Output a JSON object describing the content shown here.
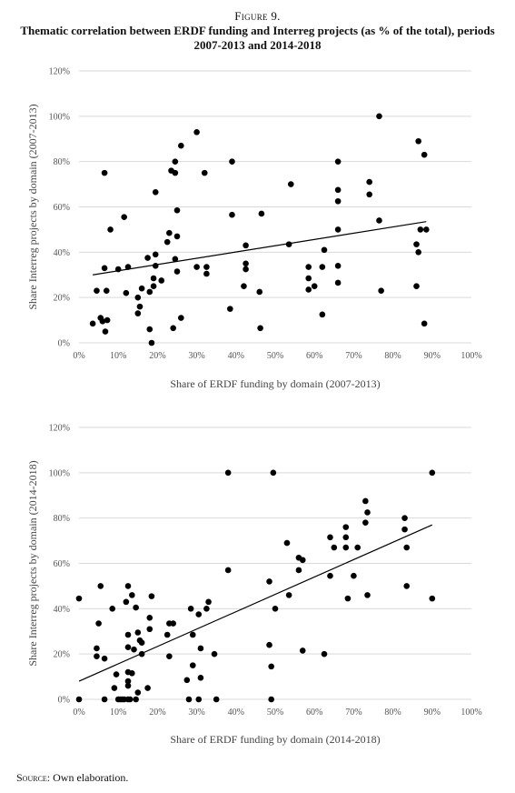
{
  "figure": {
    "label": "Figure 9.",
    "title": "Thematic correlation between ERDF funding and Interreg projects (as % of the total), periods 2007-2013 and 2014-2018"
  },
  "source": {
    "label": "Source:",
    "text": "Own elaboration."
  },
  "colors": {
    "points": "#000000",
    "trendline": "#000000",
    "gridlines": "#d9d9d9",
    "text": "#555555"
  },
  "chart_data": [
    {
      "type": "scatter",
      "title": "",
      "xlabel": "Share of ERDF funding by domain (2007-2013)",
      "ylabel": "Share Interreg projects by domain (2007-2013)",
      "xlim": [
        0,
        100
      ],
      "ylim": [
        0,
        120
      ],
      "x_ticks": [
        "0%",
        "10%",
        "20%",
        "30%",
        "40%",
        "50%",
        "60%",
        "70%",
        "80%",
        "90%",
        "100%"
      ],
      "y_ticks": [
        "0%",
        "20%",
        "40%",
        "60%",
        "80%",
        "100%",
        "120%"
      ],
      "grid": "horizontal",
      "legend": "none",
      "trendline": {
        "type": "linear",
        "x": [
          3.5,
          88.5
        ],
        "y": [
          30,
          53.5
        ]
      },
      "points": [
        [
          3.5,
          8.5
        ],
        [
          4.5,
          23
        ],
        [
          5.5,
          11
        ],
        [
          6,
          9.5
        ],
        [
          6.5,
          75
        ],
        [
          6.5,
          33
        ],
        [
          6.7,
          5
        ],
        [
          7,
          23
        ],
        [
          7.2,
          10
        ],
        [
          8,
          50
        ],
        [
          10,
          32.5
        ],
        [
          11.5,
          55.5
        ],
        [
          12,
          22
        ],
        [
          12.5,
          33.5
        ],
        [
          15,
          13
        ],
        [
          15,
          20
        ],
        [
          15.5,
          16
        ],
        [
          16,
          24
        ],
        [
          17.5,
          37.5
        ],
        [
          18,
          6
        ],
        [
          18,
          22.5
        ],
        [
          18.5,
          0
        ],
        [
          19,
          25
        ],
        [
          19,
          28.5
        ],
        [
          19.5,
          34
        ],
        [
          19.5,
          39
        ],
        [
          19.5,
          66.5
        ],
        [
          21,
          27.5
        ],
        [
          22.5,
          44.5
        ],
        [
          23,
          48.5
        ],
        [
          23.5,
          76
        ],
        [
          24,
          6.5
        ],
        [
          24.5,
          75
        ],
        [
          24.5,
          80
        ],
        [
          24.5,
          37
        ],
        [
          25,
          58.5
        ],
        [
          25,
          47
        ],
        [
          25,
          31.5
        ],
        [
          26,
          11
        ],
        [
          26,
          87
        ],
        [
          30,
          93
        ],
        [
          30,
          33.5
        ],
        [
          32,
          75
        ],
        [
          32.5,
          30.5
        ],
        [
          32.5,
          33.5
        ],
        [
          38.5,
          15
        ],
        [
          39,
          80
        ],
        [
          39,
          56.5
        ],
        [
          42,
          25
        ],
        [
          42.5,
          43
        ],
        [
          42.5,
          35
        ],
        [
          42.5,
          32.5
        ],
        [
          46,
          22.5
        ],
        [
          46.2,
          6.5
        ],
        [
          46.5,
          57
        ],
        [
          53.5,
          43.5
        ],
        [
          54,
          70
        ],
        [
          58.5,
          28.5
        ],
        [
          58.5,
          33.5
        ],
        [
          58.5,
          23.5
        ],
        [
          60,
          25
        ],
        [
          62,
          12.5
        ],
        [
          62,
          33.5
        ],
        [
          62.5,
          41
        ],
        [
          66,
          80
        ],
        [
          66,
          67.5
        ],
        [
          66,
          62.5
        ],
        [
          66,
          50
        ],
        [
          66,
          34
        ],
        [
          66,
          26.5
        ],
        [
          74,
          71
        ],
        [
          74,
          65.5
        ],
        [
          76.5,
          100
        ],
        [
          76.5,
          54
        ],
        [
          77,
          23
        ],
        [
          86,
          43.5
        ],
        [
          86,
          25
        ],
        [
          86.5,
          89
        ],
        [
          86.5,
          40
        ],
        [
          87,
          50
        ],
        [
          88,
          83
        ],
        [
          88,
          8.5
        ],
        [
          88.5,
          50
        ]
      ]
    },
    {
      "type": "scatter",
      "title": "",
      "xlabel": "Share of ERDF funding by domain (2014-2018)",
      "ylabel": "Share Interreg projects by domain (2014-2018)",
      "xlim": [
        0,
        100
      ],
      "ylim": [
        0,
        120
      ],
      "x_ticks": [
        "0%",
        "10%",
        "20%",
        "30%",
        "40%",
        "50%",
        "60%",
        "70%",
        "80%",
        "90%",
        "100%"
      ],
      "y_ticks": [
        "0%",
        "20%",
        "40%",
        "60%",
        "80%",
        "100%",
        "120%"
      ],
      "grid": "horizontal",
      "legend": "none",
      "trendline": {
        "type": "linear",
        "x": [
          0,
          90
        ],
        "y": [
          8,
          77
        ]
      },
      "points": [
        [
          0,
          0
        ],
        [
          0,
          44.5
        ],
        [
          4.5,
          19
        ],
        [
          4.5,
          22.5
        ],
        [
          5,
          33.5
        ],
        [
          5.5,
          50
        ],
        [
          6.5,
          0
        ],
        [
          6.5,
          18
        ],
        [
          8.5,
          40
        ],
        [
          9,
          5
        ],
        [
          9.5,
          11
        ],
        [
          10,
          0
        ],
        [
          10.5,
          0
        ],
        [
          11,
          0
        ],
        [
          11.5,
          0
        ],
        [
          12,
          43
        ],
        [
          12.5,
          50
        ],
        [
          12.5,
          23
        ],
        [
          12.5,
          28.5
        ],
        [
          12.5,
          12
        ],
        [
          12.5,
          0
        ],
        [
          12.5,
          8
        ],
        [
          12.5,
          6
        ],
        [
          13,
          0
        ],
        [
          13.5,
          46
        ],
        [
          13.5,
          11.5
        ],
        [
          14,
          22
        ],
        [
          14.5,
          0
        ],
        [
          14.5,
          40.5
        ],
        [
          15,
          3
        ],
        [
          15,
          29.5
        ],
        [
          15.5,
          26
        ],
        [
          16,
          25
        ],
        [
          16,
          20
        ],
        [
          17.5,
          5
        ],
        [
          18,
          36
        ],
        [
          18,
          31
        ],
        [
          18.5,
          45.5
        ],
        [
          22.5,
          28.5
        ],
        [
          23,
          19
        ],
        [
          23,
          33.5
        ],
        [
          24,
          33.5
        ],
        [
          27.5,
          8.5
        ],
        [
          28,
          0
        ],
        [
          28.5,
          40
        ],
        [
          29,
          28.5
        ],
        [
          29,
          15
        ],
        [
          30.5,
          37.5
        ],
        [
          30.5,
          0
        ],
        [
          31,
          22.5
        ],
        [
          31,
          9.5
        ],
        [
          32.5,
          40
        ],
        [
          33,
          43
        ],
        [
          34.5,
          20
        ],
        [
          35,
          0
        ],
        [
          38,
          100
        ],
        [
          38,
          57
        ],
        [
          48.5,
          52
        ],
        [
          48.5,
          24
        ],
        [
          49,
          14.5
        ],
        [
          49,
          0
        ],
        [
          49.5,
          100
        ],
        [
          50,
          40
        ],
        [
          53,
          69
        ],
        [
          53.5,
          46
        ],
        [
          56,
          62.5
        ],
        [
          56,
          57
        ],
        [
          57,
          21.5
        ],
        [
          57,
          61.5
        ],
        [
          62.5,
          20
        ],
        [
          64,
          71.5
        ],
        [
          64,
          54.5
        ],
        [
          65,
          67
        ],
        [
          68,
          76
        ],
        [
          68,
          71.5
        ],
        [
          68,
          67
        ],
        [
          68.5,
          44.5
        ],
        [
          70,
          54.5
        ],
        [
          71,
          67
        ],
        [
          73,
          87.5
        ],
        [
          73,
          78
        ],
        [
          73.5,
          82.5
        ],
        [
          73.5,
          46
        ],
        [
          83,
          80
        ],
        [
          83,
          75
        ],
        [
          83.5,
          67
        ],
        [
          83.5,
          50
        ],
        [
          90,
          100
        ],
        [
          90,
          44.5
        ]
      ]
    }
  ]
}
